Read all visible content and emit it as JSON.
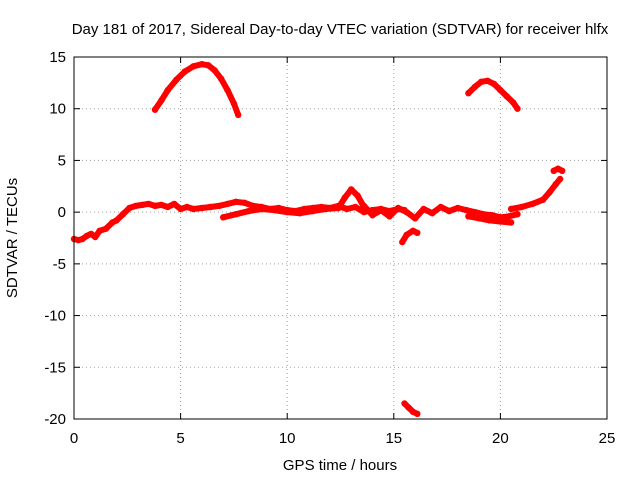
{
  "chart_data": {
    "type": "scatter",
    "title": "Day 181 of 2017, Sidereal Day-to-day VTEC variation (SDTVAR) for receiver hlfx",
    "xlabel": "GPS time / hours",
    "ylabel": "SDTVAR / TECUs",
    "xlim": [
      0,
      25
    ],
    "ylim": [
      -20,
      15
    ],
    "xticks": [
      0,
      5,
      10,
      15,
      20,
      25
    ],
    "yticks": [
      -20,
      -15,
      -10,
      -5,
      0,
      5,
      10,
      15
    ],
    "grid": true,
    "color": "#ff0000",
    "series": [
      {
        "name": "arc-main",
        "x": [
          0.0,
          0.2,
          0.4,
          0.6,
          0.8,
          1.0,
          1.2,
          1.5,
          1.8,
          2.0,
          2.3,
          2.6,
          2.9,
          3.2,
          3.5,
          3.8,
          4.1,
          4.4,
          4.7,
          5.0,
          5.3,
          5.6,
          6.0,
          6.4,
          6.8,
          7.2,
          7.6,
          8.0,
          8.4,
          8.8,
          9.2,
          9.6,
          10.0,
          10.4,
          10.8,
          11.2,
          11.6,
          12.0,
          12.4,
          12.8,
          13.2,
          13.6,
          14.0,
          14.4,
          14.8,
          15.2,
          15.5
        ],
        "y": [
          -2.6,
          -2.7,
          -2.6,
          -2.3,
          -2.1,
          -2.4,
          -1.8,
          -1.6,
          -1.0,
          -0.8,
          -0.2,
          0.4,
          0.6,
          0.7,
          0.8,
          0.6,
          0.7,
          0.5,
          0.8,
          0.3,
          0.5,
          0.3,
          0.4,
          0.5,
          0.6,
          0.8,
          1.0,
          0.9,
          0.6,
          0.5,
          0.3,
          0.4,
          0.2,
          0.1,
          0.3,
          0.4,
          0.5,
          0.4,
          0.6,
          0.3,
          0.5,
          0.0,
          0.2,
          0.3,
          0.1,
          0.3,
          0.2
        ]
      },
      {
        "name": "arc-high-1",
        "x": [
          3.8,
          4.1,
          4.4,
          4.8,
          5.2,
          5.6,
          6.0,
          6.3,
          6.6,
          6.9,
          7.2,
          7.5,
          7.7
        ],
        "y": [
          9.9,
          10.8,
          11.8,
          12.8,
          13.6,
          14.1,
          14.3,
          14.2,
          13.7,
          12.9,
          11.8,
          10.5,
          9.4
        ]
      },
      {
        "name": "arc-high-2",
        "x": [
          18.5,
          18.8,
          19.1,
          19.4,
          19.7,
          20.0,
          20.3,
          20.6,
          20.8
        ],
        "y": [
          11.5,
          12.1,
          12.6,
          12.7,
          12.4,
          11.8,
          11.2,
          10.6,
          10.0
        ]
      },
      {
        "name": "arc-mid",
        "x": [
          7.0,
          7.6,
          8.2,
          8.8,
          9.4,
          10.0,
          10.6,
          11.2,
          11.8,
          12.4
        ],
        "y": [
          -0.5,
          -0.2,
          0.1,
          0.3,
          0.2,
          0.0,
          -0.1,
          0.1,
          0.3,
          0.4
        ]
      },
      {
        "name": "arc-bump",
        "x": [
          12.4,
          12.7,
          13.0,
          13.3,
          13.6
        ],
        "y": [
          0.4,
          1.4,
          2.2,
          1.6,
          0.5
        ]
      },
      {
        "name": "arc-night",
        "x": [
          13.6,
          14.0,
          14.4,
          14.8,
          15.2,
          15.6,
          16.0,
          16.4,
          16.8,
          17.2,
          17.6,
          18.0,
          18.4,
          18.8,
          19.2,
          19.6,
          20.0,
          20.4,
          20.8
        ],
        "y": [
          0.6,
          -0.3,
          0.2,
          -0.4,
          0.4,
          0.0,
          -0.6,
          0.3,
          -0.1,
          0.5,
          0.1,
          0.4,
          0.2,
          0.0,
          -0.2,
          -0.3,
          -0.5,
          -0.4,
          -0.2
        ]
      },
      {
        "name": "arc-late",
        "x": [
          18.5,
          19.0,
          19.5,
          20.0,
          20.5
        ],
        "y": [
          -0.4,
          -0.6,
          -0.8,
          -0.9,
          -1.0
        ]
      },
      {
        "name": "arc-dip",
        "x": [
          15.4,
          15.6,
          15.9,
          16.1
        ],
        "y": [
          -2.9,
          -2.2,
          -1.8,
          -2.0
        ]
      },
      {
        "name": "arc-low",
        "x": [
          15.5,
          15.7,
          15.9,
          16.1
        ],
        "y": [
          -18.5,
          -18.9,
          -19.3,
          -19.5
        ]
      },
      {
        "name": "arc-rise",
        "x": [
          20.5,
          21.0,
          21.5,
          22.0,
          22.3,
          22.6,
          22.8
        ],
        "y": [
          0.3,
          0.5,
          0.8,
          1.2,
          1.9,
          2.7,
          3.2
        ]
      },
      {
        "name": "arc-end",
        "x": [
          22.5,
          22.7,
          22.9
        ],
        "y": [
          4.0,
          4.2,
          4.0
        ]
      }
    ]
  }
}
